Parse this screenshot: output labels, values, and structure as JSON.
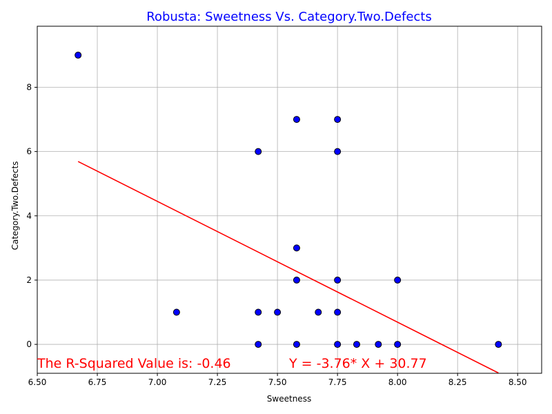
{
  "chart_data": {
    "type": "scatter",
    "title": "Robusta: Sweetness Vs. Category.Two.Defects",
    "title_color": "#0000ff",
    "xlabel": "Sweetness",
    "ylabel": "Category.Two.Defects",
    "xlim": [
      6.5,
      8.6
    ],
    "ylim": [
      -0.9,
      9.9
    ],
    "xticks": [
      6.5,
      6.75,
      7.0,
      7.25,
      7.5,
      7.75,
      8.0,
      8.25,
      8.5
    ],
    "xtick_labels": [
      "6.50",
      "6.75",
      "7.00",
      "7.25",
      "7.50",
      "7.75",
      "8.00",
      "8.25",
      "8.50"
    ],
    "yticks": [
      0,
      2,
      4,
      6,
      8
    ],
    "ytick_labels": [
      "0",
      "2",
      "4",
      "6",
      "8"
    ],
    "grid": true,
    "marker_color": "#0000ff",
    "marker_edge": "#000000",
    "points": [
      {
        "x": 6.67,
        "y": 9
      },
      {
        "x": 7.08,
        "y": 1
      },
      {
        "x": 7.42,
        "y": 6
      },
      {
        "x": 7.42,
        "y": 1
      },
      {
        "x": 7.42,
        "y": 0
      },
      {
        "x": 7.5,
        "y": 1
      },
      {
        "x": 7.58,
        "y": 7
      },
      {
        "x": 7.58,
        "y": 3
      },
      {
        "x": 7.58,
        "y": 2
      },
      {
        "x": 7.58,
        "y": 0
      },
      {
        "x": 7.67,
        "y": 1
      },
      {
        "x": 7.75,
        "y": 7
      },
      {
        "x": 7.75,
        "y": 6
      },
      {
        "x": 7.75,
        "y": 2
      },
      {
        "x": 7.75,
        "y": 1
      },
      {
        "x": 7.75,
        "y": 0
      },
      {
        "x": 7.83,
        "y": 0
      },
      {
        "x": 7.92,
        "y": 0
      },
      {
        "x": 8.0,
        "y": 2
      },
      {
        "x": 8.0,
        "y": 0
      },
      {
        "x": 8.42,
        "y": 0
      }
    ],
    "regression": {
      "slope": -3.76,
      "intercept": 30.77,
      "x_range": [
        6.67,
        8.42
      ],
      "color": "#ff0000"
    },
    "annotations": {
      "r_squared": "The R-Squared Value is: -0.46",
      "equation": "Y = -3.76* X + 30.77",
      "color": "#ff0000"
    }
  }
}
